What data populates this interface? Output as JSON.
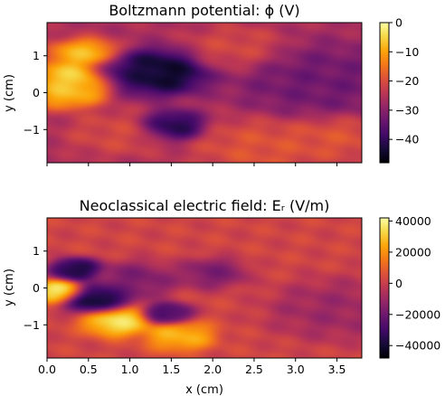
{
  "chart_data": [
    {
      "type": "heatmap",
      "title": "Boltzmann potential: ϕ (V)",
      "xlabel": "",
      "ylabel": "y (cm)",
      "xlim": [
        0,
        3.8
      ],
      "ylim": [
        -1.9,
        1.9
      ],
      "x_ticks": [
        0.0,
        0.5,
        1.0,
        1.5,
        2.0,
        2.5,
        3.0,
        3.5
      ],
      "x_tick_labels": [],
      "y_ticks": [
        1,
        0,
        -1
      ],
      "y_tick_labels": [
        "1",
        "0",
        "−1"
      ],
      "colorbar": {
        "range": [
          -48,
          0
        ],
        "ticks": [
          0,
          -10,
          -20,
          -30,
          -40
        ],
        "tick_labels": [
          "0",
          "−10",
          "−20",
          "−30",
          "−40"
        ],
        "colormap": "inferno"
      },
      "features": [
        {
          "x": 0.35,
          "y": 0.4,
          "value": -2,
          "sigma": 0.25
        },
        {
          "x": 0.45,
          "y": 1.05,
          "value": -5,
          "sigma": 0.2
        },
        {
          "x": 0.25,
          "y": -0.05,
          "value": -6,
          "sigma": 0.2
        },
        {
          "x": 0.85,
          "y": -1.1,
          "value": -20,
          "sigma": 0.3
        },
        {
          "x": 1.35,
          "y": 0.55,
          "value": -48,
          "sigma": 0.3
        },
        {
          "x": 0.9,
          "y": 0.55,
          "value": -40,
          "sigma": 0.2
        },
        {
          "x": 1.5,
          "y": -0.9,
          "value": -45,
          "sigma": 0.2
        },
        {
          "x": 2.3,
          "y": 1.2,
          "value": -20,
          "sigma": 0.3
        },
        {
          "x": 2.6,
          "y": -1.5,
          "value": -18,
          "sigma": 0.4
        },
        {
          "x": 3.5,
          "y": -1.2,
          "value": -18,
          "sigma": 0.3
        },
        {
          "x": 3.3,
          "y": 0.3,
          "value": -34,
          "sigma": 0.5
        }
      ]
    },
    {
      "type": "heatmap",
      "title": "Neoclassical electric field: Eᵣ (V/m)",
      "xlabel": "x (cm)",
      "ylabel": "y (cm)",
      "xlim": [
        0,
        3.8
      ],
      "ylim": [
        -1.9,
        1.9
      ],
      "x_ticks": [
        0.0,
        0.5,
        1.0,
        1.5,
        2.0,
        2.5,
        3.0,
        3.5
      ],
      "x_tick_labels": [
        "0.0",
        "0.5",
        "1.0",
        "1.5",
        "2.0",
        "2.5",
        "3.0",
        "3.5"
      ],
      "y_ticks": [
        1,
        0,
        -1
      ],
      "y_tick_labels": [
        "1",
        "0",
        "−1"
      ],
      "colorbar": {
        "range": [
          -48000,
          42000
        ],
        "ticks": [
          40000,
          20000,
          0,
          -20000,
          -40000
        ],
        "tick_labels": [
          "40000",
          "20000",
          "0",
          "−20000",
          "−40000"
        ],
        "colormap": "inferno"
      },
      "features": [
        {
          "x": 0.15,
          "y": -0.1,
          "value": 42000,
          "sigma": 0.15
        },
        {
          "x": 0.35,
          "y": 0.5,
          "value": -45000,
          "sigma": 0.15
        },
        {
          "x": 0.6,
          "y": -0.3,
          "value": -48000,
          "sigma": 0.2
        },
        {
          "x": 0.85,
          "y": -0.9,
          "value": 40000,
          "sigma": 0.2
        },
        {
          "x": 1.05,
          "y": 0.2,
          "value": -20000,
          "sigma": 0.25
        },
        {
          "x": 1.45,
          "y": -0.7,
          "value": -35000,
          "sigma": 0.15
        },
        {
          "x": 1.6,
          "y": -1.3,
          "value": 30000,
          "sigma": 0.2
        },
        {
          "x": 2.0,
          "y": 0.4,
          "value": -20000,
          "sigma": 0.2
        },
        {
          "x": 3.5,
          "y": -0.6,
          "value": -12000,
          "sigma": 0.4
        }
      ]
    }
  ]
}
